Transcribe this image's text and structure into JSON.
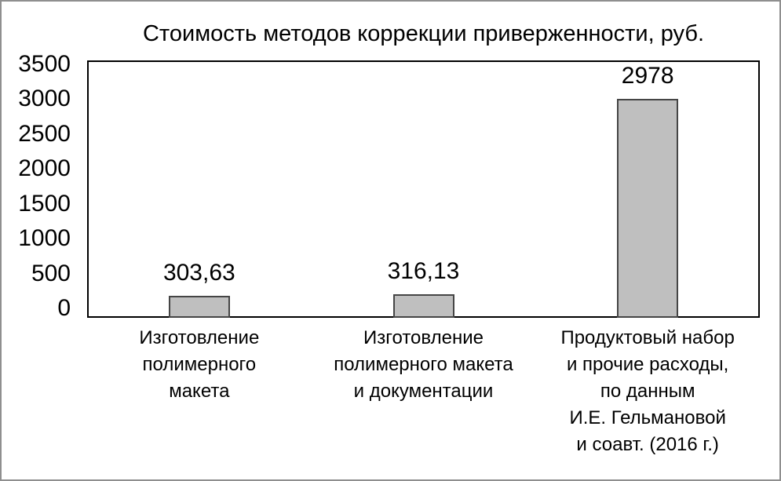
{
  "chart_data": {
    "type": "bar",
    "title": "Стоимость методов коррекции приверженности, руб.",
    "categories": [
      "Изготовление\nполимерного\nмакета",
      "Изготовление\nполимерного макета\nи документации",
      "Продуктовый набор\nи прочие расходы,\nпо данным\nИ.Е. Гельмановой\nи соавт. (2016 г.)"
    ],
    "values": [
      303.63,
      316.13,
      2978
    ],
    "value_labels": [
      "303,63",
      "316,13",
      "2978"
    ],
    "yticks": [
      0,
      500,
      1000,
      1500,
      2000,
      2500,
      3000,
      3500
    ],
    "ylim": [
      0,
      3500
    ],
    "xlabel": "",
    "ylabel": "",
    "grid": false,
    "legend": "none",
    "bar_fill": "#bfbfbf",
    "bar_border": "#454545",
    "axis_color": "#000000"
  }
}
